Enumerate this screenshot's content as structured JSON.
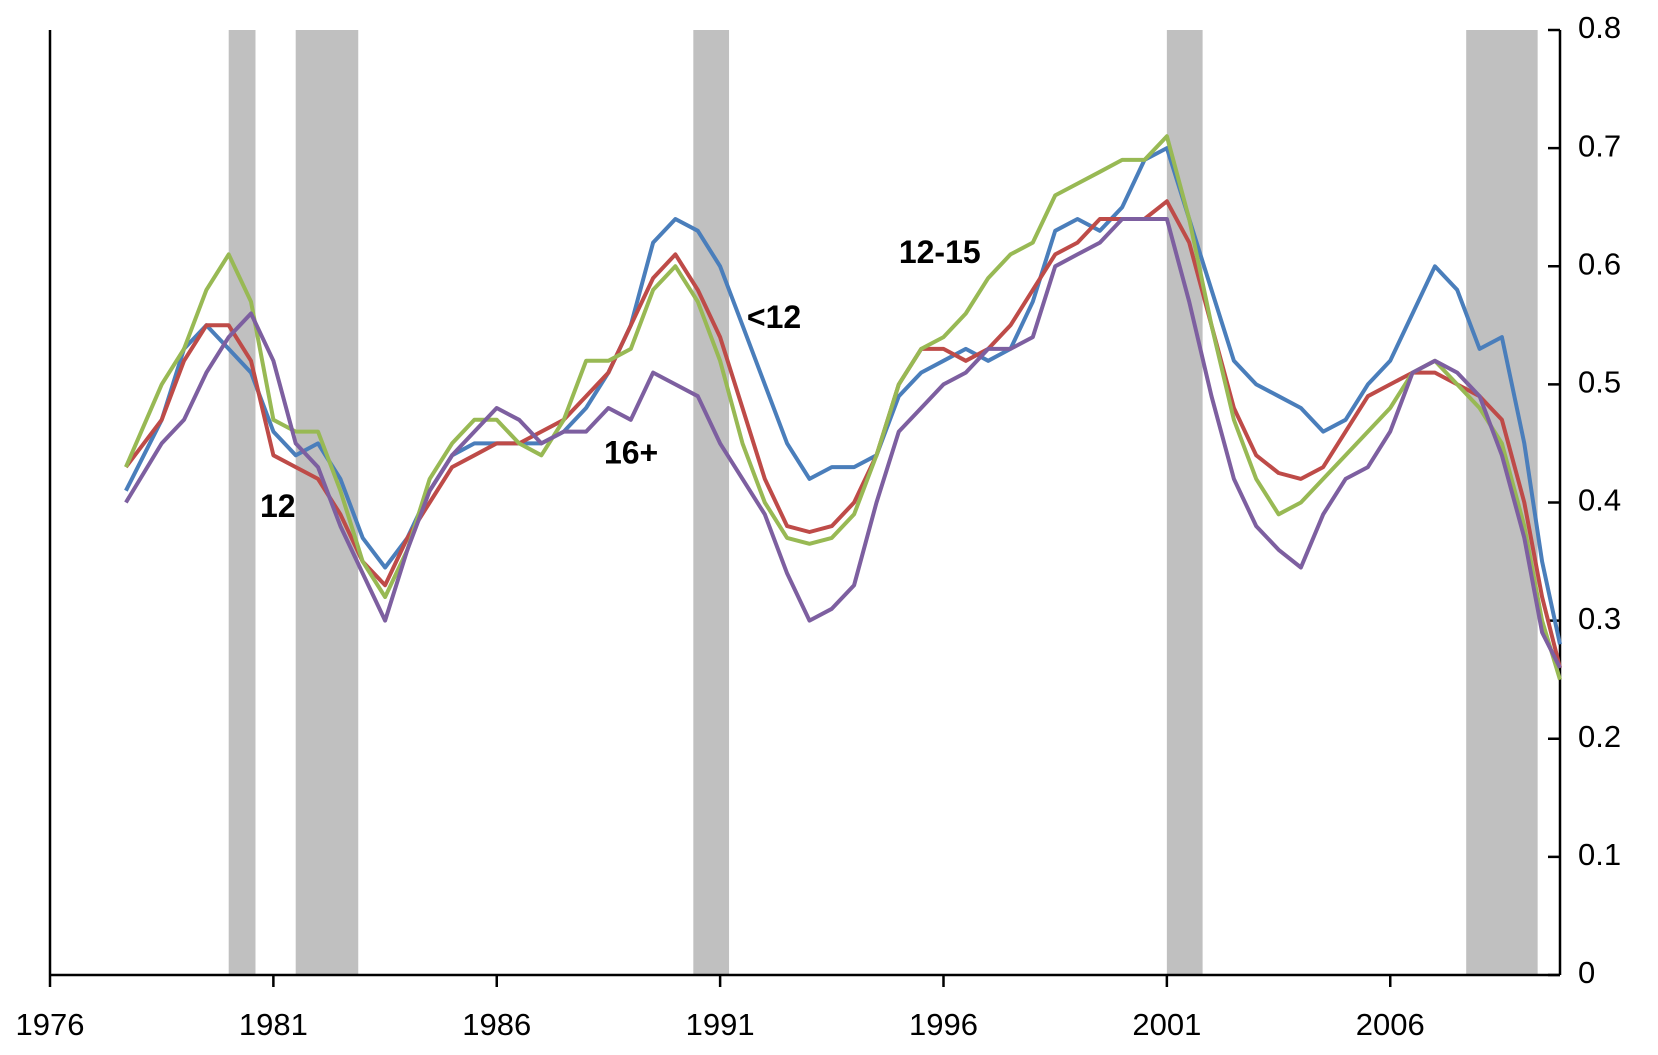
{
  "chart_data": {
    "type": "line",
    "x": [
      1977.7,
      1978.5,
      1979,
      1979.5,
      1980,
      1980.5,
      1981,
      1981.5,
      1982,
      1982.5,
      1983,
      1983.5,
      1984,
      1984.5,
      1985,
      1985.5,
      1986,
      1986.5,
      1987,
      1987.5,
      1988,
      1988.5,
      1989,
      1989.5,
      1990,
      1990.5,
      1991,
      1991.5,
      1992,
      1992.5,
      1993,
      1993.5,
      1994,
      1994.5,
      1995,
      1995.5,
      1996,
      1996.5,
      1997,
      1997.5,
      1998,
      1998.5,
      1999,
      1999.5,
      2000,
      2000.5,
      2001,
      2001.5,
      2002,
      2002.5,
      2003,
      2003.5,
      2004,
      2004.5,
      2005,
      2005.5,
      2006,
      2006.5,
      2007,
      2007.5,
      2008,
      2008.5,
      2009,
      2009.4,
      2009.8
    ],
    "series": [
      {
        "name": "<12",
        "color": "#4a7ebb",
        "values": [
          0.41,
          0.47,
          0.53,
          0.55,
          0.53,
          0.51,
          0.46,
          0.44,
          0.45,
          0.42,
          0.37,
          0.345,
          0.37,
          0.41,
          0.44,
          0.45,
          0.45,
          0.45,
          0.45,
          0.46,
          0.48,
          0.51,
          0.55,
          0.62,
          0.64,
          0.63,
          0.6,
          0.55,
          0.5,
          0.45,
          0.42,
          0.43,
          0.43,
          0.44,
          0.49,
          0.51,
          0.52,
          0.53,
          0.52,
          0.53,
          0.57,
          0.63,
          0.64,
          0.63,
          0.65,
          0.69,
          0.7,
          0.64,
          0.58,
          0.52,
          0.5,
          0.49,
          0.48,
          0.46,
          0.47,
          0.5,
          0.52,
          0.56,
          0.6,
          0.58,
          0.53,
          0.54,
          0.45,
          0.35,
          0.28
        ]
      },
      {
        "name": "12",
        "color": "#be4b48",
        "values": [
          0.43,
          0.47,
          0.52,
          0.55,
          0.55,
          0.52,
          0.44,
          0.43,
          0.42,
          0.39,
          0.35,
          0.33,
          0.37,
          0.4,
          0.43,
          0.44,
          0.45,
          0.45,
          0.46,
          0.47,
          0.49,
          0.51,
          0.55,
          0.59,
          0.61,
          0.58,
          0.54,
          0.48,
          0.42,
          0.38,
          0.375,
          0.38,
          0.4,
          0.44,
          0.5,
          0.53,
          0.53,
          0.52,
          0.53,
          0.55,
          0.58,
          0.61,
          0.62,
          0.64,
          0.64,
          0.64,
          0.655,
          0.62,
          0.55,
          0.48,
          0.44,
          0.425,
          0.42,
          0.43,
          0.46,
          0.49,
          0.5,
          0.51,
          0.51,
          0.5,
          0.49,
          0.47,
          0.4,
          0.32,
          0.26
        ]
      },
      {
        "name": "12-15",
        "color": "#98b954",
        "values": [
          0.43,
          0.5,
          0.53,
          0.58,
          0.61,
          0.57,
          0.47,
          0.46,
          0.46,
          0.41,
          0.35,
          0.32,
          0.36,
          0.42,
          0.45,
          0.47,
          0.47,
          0.45,
          0.44,
          0.47,
          0.52,
          0.52,
          0.53,
          0.58,
          0.6,
          0.57,
          0.52,
          0.45,
          0.4,
          0.37,
          0.365,
          0.37,
          0.39,
          0.44,
          0.5,
          0.53,
          0.54,
          0.56,
          0.59,
          0.61,
          0.62,
          0.66,
          0.67,
          0.68,
          0.69,
          0.69,
          0.71,
          0.64,
          0.55,
          0.47,
          0.42,
          0.39,
          0.4,
          0.42,
          0.44,
          0.46,
          0.48,
          0.51,
          0.52,
          0.5,
          0.48,
          0.45,
          0.38,
          0.3,
          0.25
        ]
      },
      {
        "name": "16+",
        "color": "#7d5fa0",
        "values": [
          0.4,
          0.45,
          0.47,
          0.51,
          0.54,
          0.56,
          0.52,
          0.45,
          0.43,
          0.38,
          0.34,
          0.3,
          0.36,
          0.41,
          0.44,
          0.46,
          0.48,
          0.47,
          0.45,
          0.46,
          0.46,
          0.48,
          0.47,
          0.51,
          0.5,
          0.49,
          0.45,
          0.42,
          0.39,
          0.34,
          0.3,
          0.31,
          0.33,
          0.4,
          0.46,
          0.48,
          0.5,
          0.51,
          0.53,
          0.53,
          0.54,
          0.6,
          0.61,
          0.62,
          0.64,
          0.64,
          0.64,
          0.57,
          0.49,
          0.42,
          0.38,
          0.36,
          0.345,
          0.39,
          0.42,
          0.43,
          0.46,
          0.51,
          0.52,
          0.51,
          0.49,
          0.44,
          0.37,
          0.29,
          0.26
        ]
      }
    ],
    "recessions": [
      [
        1980.0,
        1980.6
      ],
      [
        1981.5,
        1982.9
      ],
      [
        1990.4,
        1991.2
      ],
      [
        2001.0,
        2001.8
      ],
      [
        2007.7,
        2009.3
      ]
    ],
    "recession_color": "#c0c0c0",
    "xlim": [
      1976,
      2009.8
    ],
    "xticks": [
      1976,
      1981,
      1986,
      1991,
      1996,
      2001,
      2006
    ],
    "ylim": [
      0,
      0.8
    ],
    "yticks": [
      0,
      0.1,
      0.2,
      0.3,
      0.4,
      0.5,
      0.6,
      0.7,
      0.8
    ],
    "y_axis_side": "right",
    "grid": false
  }
}
